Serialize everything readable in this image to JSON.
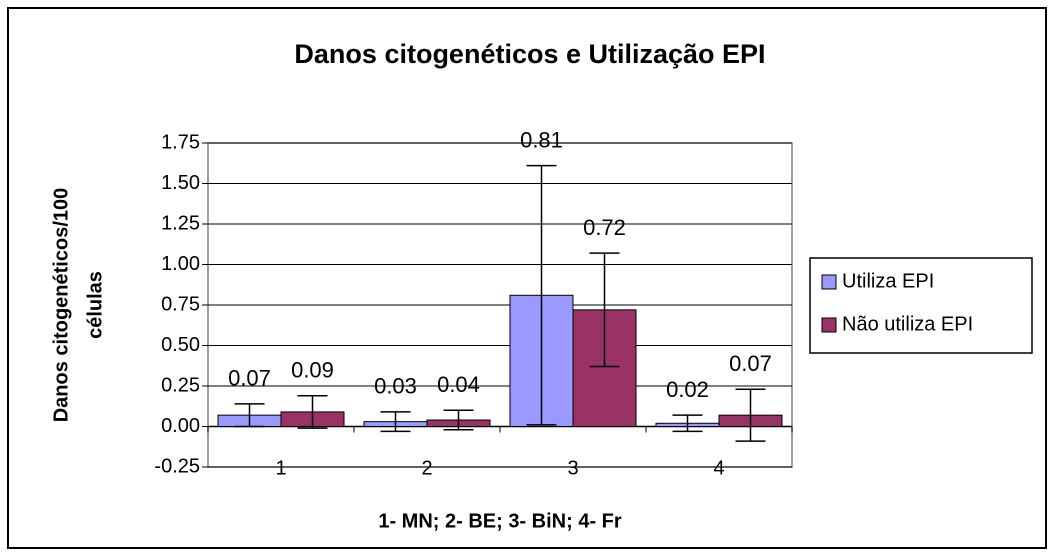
{
  "chart_data": {
    "type": "bar",
    "title": "Danos citogenéticos e Utilização EPI",
    "xlabel": "1- MN; 2- BE; 3- BiN; 4- Fr",
    "ylabel": [
      "Danos citogenéticos/100",
      "células"
    ],
    "categories": [
      "1",
      "2",
      "3",
      "4"
    ],
    "series": [
      {
        "name": "Utiliza EPI",
        "color": "#9999ff",
        "values": [
          0.07,
          0.03,
          0.81,
          0.02
        ],
        "errors": [
          0.07,
          0.06,
          0.8,
          0.05
        ]
      },
      {
        "name": "Não utiliza EPI",
        "color": "#993366",
        "values": [
          0.09,
          0.04,
          0.72,
          0.07
        ],
        "errors": [
          0.1,
          0.06,
          0.35,
          0.16
        ]
      }
    ],
    "ylim": [
      -0.25,
      1.75
    ],
    "yticks": [
      -0.25,
      {
        "value": 0,
        "label": "0.00"
      },
      0.25,
      {
        "value": 0.5,
        "label": "0.50"
      },
      0.75,
      {
        "value": 1,
        "label": "1.00"
      },
      1.25,
      {
        "value": 1.5,
        "label": "1.50"
      },
      1.75
    ],
    "grid": true,
    "legend": "right"
  }
}
